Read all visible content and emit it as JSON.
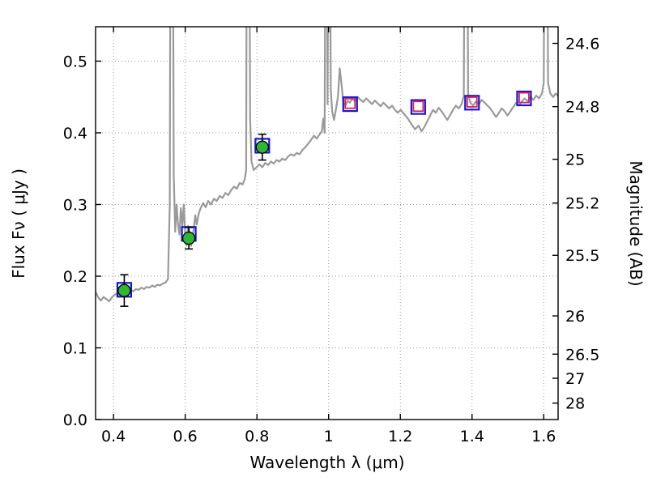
{
  "figure": {
    "title": "",
    "xlabel": "Wavelength  λ (μm)",
    "ylabel_left": "Flux  Fν  ( μJy )",
    "ylabel_right": "Magnitude (AB)",
    "background": "#ffffff",
    "frame_color": "#000000",
    "grid_color": "#999999"
  },
  "chart_data": {
    "type": "line",
    "title": "",
    "xlabel": "Wavelength λ (μm)",
    "ylabel": "Flux Fν ( μJy )",
    "ylabel_right": "Magnitude (AB)",
    "xlim": [
      0.35,
      1.64
    ],
    "ylim": [
      0.0,
      0.548
    ],
    "grid": true,
    "legend": "none",
    "x_ticks": [
      0.4,
      0.6,
      0.8,
      1.0,
      1.2,
      1.4,
      1.6
    ],
    "x_tick_labels": [
      "0.4",
      "0.6",
      "0.8",
      "1",
      "1.2",
      "1.4",
      "1.6"
    ],
    "y_ticks_left": [
      0.0,
      0.1,
      0.2,
      0.3,
      0.4,
      0.5
    ],
    "y_tick_labels_left": [
      "0.0",
      "0.1",
      "0.2",
      "0.3",
      "0.4",
      "0.5"
    ],
    "right_axis_mags": [
      24.6,
      24.8,
      25.0,
      25.2,
      25.5,
      26.0,
      26.5,
      27.0,
      28.0
    ],
    "right_tick_labels": [
      "24.6",
      "24.8",
      "25",
      "25.2",
      "25.5",
      "26",
      "26.5",
      "27",
      "28"
    ],
    "mag_zeropoint": 23.9,
    "series": [
      {
        "name": "model-spectrum",
        "type": "line",
        "color": "#9a9a9a",
        "line_width": 2.2,
        "points": [
          [
            0.35,
            0.178
          ],
          [
            0.358,
            0.17
          ],
          [
            0.365,
            0.166
          ],
          [
            0.372,
            0.171
          ],
          [
            0.38,
            0.168
          ],
          [
            0.388,
            0.165
          ],
          [
            0.395,
            0.17
          ],
          [
            0.403,
            0.174
          ],
          [
            0.41,
            0.176
          ],
          [
            0.418,
            0.173
          ],
          [
            0.425,
            0.177
          ],
          [
            0.432,
            0.18
          ],
          [
            0.44,
            0.178
          ],
          [
            0.448,
            0.181
          ],
          [
            0.455,
            0.179
          ],
          [
            0.462,
            0.182
          ],
          [
            0.47,
            0.181
          ],
          [
            0.478,
            0.184
          ],
          [
            0.485,
            0.182
          ],
          [
            0.492,
            0.185
          ],
          [
            0.5,
            0.184
          ],
          [
            0.508,
            0.187
          ],
          [
            0.515,
            0.185
          ],
          [
            0.522,
            0.188
          ],
          [
            0.53,
            0.187
          ],
          [
            0.538,
            0.19
          ],
          [
            0.545,
            0.191
          ],
          [
            0.552,
            0.196
          ],
          [
            0.557,
            0.3
          ],
          [
            0.56,
            1.0
          ],
          [
            0.564,
            1.0
          ],
          [
            0.568,
            0.34
          ],
          [
            0.572,
            0.262
          ],
          [
            0.576,
            0.3
          ],
          [
            0.58,
            0.272
          ],
          [
            0.584,
            0.258
          ],
          [
            0.588,
            0.295
          ],
          [
            0.592,
            0.27
          ],
          [
            0.596,
            0.3
          ],
          [
            0.6,
            0.258
          ],
          [
            0.604,
            0.243
          ],
          [
            0.608,
            0.27
          ],
          [
            0.612,
            0.262
          ],
          [
            0.616,
            0.242
          ],
          [
            0.62,
            0.252
          ],
          [
            0.624,
            0.268
          ],
          [
            0.628,
            0.285
          ],
          [
            0.632,
            0.272
          ],
          [
            0.638,
            0.288
          ],
          [
            0.644,
            0.296
          ],
          [
            0.65,
            0.302
          ],
          [
            0.657,
            0.296
          ],
          [
            0.664,
            0.305
          ],
          [
            0.672,
            0.3
          ],
          [
            0.68,
            0.308
          ],
          [
            0.688,
            0.305
          ],
          [
            0.696,
            0.312
          ],
          [
            0.704,
            0.309
          ],
          [
            0.712,
            0.316
          ],
          [
            0.72,
            0.313
          ],
          [
            0.728,
            0.32
          ],
          [
            0.736,
            0.325
          ],
          [
            0.744,
            0.322
          ],
          [
            0.752,
            0.33
          ],
          [
            0.76,
            0.328
          ],
          [
            0.766,
            0.335
          ],
          [
            0.77,
            0.348
          ],
          [
            0.773,
            1.0
          ],
          [
            0.777,
            1.0
          ],
          [
            0.781,
            0.42
          ],
          [
            0.785,
            0.36
          ],
          [
            0.791,
            0.348
          ],
          [
            0.799,
            0.352
          ],
          [
            0.807,
            0.356
          ],
          [
            0.815,
            0.352
          ],
          [
            0.823,
            0.358
          ],
          [
            0.831,
            0.355
          ],
          [
            0.839,
            0.36
          ],
          [
            0.847,
            0.357
          ],
          [
            0.855,
            0.362
          ],
          [
            0.863,
            0.36
          ],
          [
            0.871,
            0.364
          ],
          [
            0.879,
            0.362
          ],
          [
            0.887,
            0.367
          ],
          [
            0.895,
            0.37
          ],
          [
            0.903,
            0.368
          ],
          [
            0.911,
            0.372
          ],
          [
            0.919,
            0.37
          ],
          [
            0.927,
            0.376
          ],
          [
            0.935,
            0.38
          ],
          [
            0.943,
            0.385
          ],
          [
            0.951,
            0.39
          ],
          [
            0.959,
            0.396
          ],
          [
            0.967,
            0.392
          ],
          [
            0.975,
            0.398
          ],
          [
            0.981,
            0.402
          ],
          [
            0.985,
            0.42
          ],
          [
            0.989,
            0.4
          ],
          [
            0.993,
            1.0
          ],
          [
            0.997,
            0.44
          ],
          [
            1.001,
            1.0
          ],
          [
            1.006,
            0.46
          ],
          [
            1.01,
            0.43
          ],
          [
            1.015,
            0.418
          ],
          [
            1.02,
            0.432
          ],
          [
            1.026,
            0.45
          ],
          [
            1.031,
            0.49
          ],
          [
            1.036,
            0.468
          ],
          [
            1.041,
            0.442
          ],
          [
            1.047,
            0.438
          ],
          [
            1.053,
            0.445
          ],
          [
            1.059,
            0.442
          ],
          [
            1.066,
            0.448
          ],
          [
            1.073,
            0.444
          ],
          [
            1.081,
            0.45
          ],
          [
            1.089,
            0.446
          ],
          [
            1.097,
            0.443
          ],
          [
            1.105,
            0.448
          ],
          [
            1.113,
            0.444
          ],
          [
            1.121,
            0.44
          ],
          [
            1.129,
            0.445
          ],
          [
            1.137,
            0.441
          ],
          [
            1.145,
            0.437
          ],
          [
            1.153,
            0.442
          ],
          [
            1.161,
            0.438
          ],
          [
            1.169,
            0.434
          ],
          [
            1.177,
            0.438
          ],
          [
            1.185,
            0.432
          ],
          [
            1.193,
            0.428
          ],
          [
            1.201,
            0.432
          ],
          [
            1.211,
            0.426
          ],
          [
            1.221,
            0.42
          ],
          [
            1.231,
            0.412
          ],
          [
            1.241,
            0.405
          ],
          [
            1.251,
            0.41
          ],
          [
            1.259,
            0.402
          ],
          [
            1.267,
            0.408
          ],
          [
            1.275,
            0.416
          ],
          [
            1.283,
            0.424
          ],
          [
            1.291,
            0.432
          ],
          [
            1.299,
            0.428
          ],
          [
            1.307,
            0.435
          ],
          [
            1.315,
            0.43
          ],
          [
            1.323,
            0.424
          ],
          [
            1.331,
            0.418
          ],
          [
            1.339,
            0.425
          ],
          [
            1.347,
            0.432
          ],
          [
            1.355,
            0.438
          ],
          [
            1.363,
            0.434
          ],
          [
            1.371,
            0.44
          ],
          [
            1.377,
            0.452
          ],
          [
            1.381,
            1.0
          ],
          [
            1.385,
            1.0
          ],
          [
            1.389,
            0.455
          ],
          [
            1.395,
            0.442
          ],
          [
            1.403,
            0.438
          ],
          [
            1.411,
            0.444
          ],
          [
            1.419,
            0.44
          ],
          [
            1.427,
            0.446
          ],
          [
            1.435,
            0.442
          ],
          [
            1.443,
            0.438
          ],
          [
            1.451,
            0.434
          ],
          [
            1.459,
            0.428
          ],
          [
            1.467,
            0.422
          ],
          [
            1.475,
            0.428
          ],
          [
            1.483,
            0.434
          ],
          [
            1.491,
            0.43
          ],
          [
            1.499,
            0.424
          ],
          [
            1.507,
            0.43
          ],
          [
            1.515,
            0.436
          ],
          [
            1.523,
            0.442
          ],
          [
            1.531,
            0.438
          ],
          [
            1.539,
            0.444
          ],
          [
            1.547,
            0.448
          ],
          [
            1.555,
            0.444
          ],
          [
            1.563,
            0.45
          ],
          [
            1.571,
            0.446
          ],
          [
            1.579,
            0.452
          ],
          [
            1.587,
            0.448
          ],
          [
            1.595,
            0.455
          ],
          [
            1.6,
            0.47
          ],
          [
            1.604,
            1.0
          ],
          [
            1.608,
            1.0
          ],
          [
            1.612,
            0.47
          ],
          [
            1.618,
            0.455
          ],
          [
            1.626,
            0.45
          ],
          [
            1.634,
            0.455
          ],
          [
            1.642,
            0.45
          ],
          [
            1.65,
            0.455
          ]
        ]
      },
      {
        "name": "model-photometry-blue-squares",
        "type": "scatter",
        "marker": "square-open",
        "color": "#1515dd",
        "line_width": 2.2,
        "marker_half_size": 8.5,
        "points": [
          [
            0.43,
            0.181
          ],
          [
            0.61,
            0.259
          ],
          [
            0.815,
            0.382
          ],
          [
            1.06,
            0.44
          ],
          [
            1.25,
            0.436
          ],
          [
            1.4,
            0.442
          ],
          [
            1.545,
            0.448
          ]
        ]
      },
      {
        "name": "model-photometry-red-squares",
        "type": "scatter",
        "marker": "square-open",
        "color": "#e02050",
        "line_width": 1.8,
        "marker_half_size": 6,
        "points": [
          [
            1.06,
            0.441
          ],
          [
            1.25,
            0.437
          ],
          [
            1.4,
            0.443
          ],
          [
            1.545,
            0.449
          ]
        ]
      },
      {
        "name": "observed-photometry-green-circles",
        "type": "scatter",
        "marker": "circle",
        "color": "#2eb82e",
        "edge_color": "#000000",
        "marker_radius": 7.5,
        "error_color": "#000000",
        "points": [
          [
            0.43,
            0.18
          ],
          [
            0.61,
            0.253
          ],
          [
            0.815,
            0.38
          ]
        ],
        "yerr": [
          0.022,
          0.015,
          0.018
        ]
      }
    ]
  }
}
